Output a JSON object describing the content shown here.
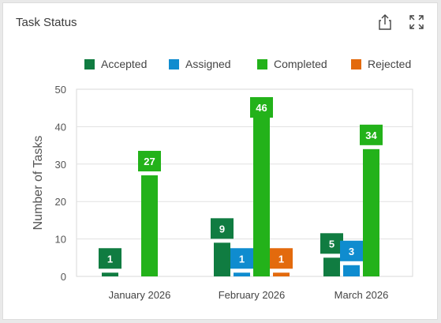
{
  "widget": {
    "title": "Task Status",
    "share_icon": "share-icon",
    "expand_icon": "expand-icon"
  },
  "colors": {
    "Accepted": "#107c41",
    "Assigned": "#0f8ccf",
    "Completed": "#23b21a",
    "Rejected": "#e36a0d"
  },
  "chart_data": {
    "type": "bar",
    "categories": [
      "January 2026",
      "February 2026",
      "March 2026"
    ],
    "series": [
      {
        "name": "Accepted",
        "values": [
          1,
          9,
          5
        ]
      },
      {
        "name": "Assigned",
        "values": [
          0,
          1,
          3
        ]
      },
      {
        "name": "Completed",
        "values": [
          27,
          46,
          34
        ]
      },
      {
        "name": "Rejected",
        "values": [
          0,
          1,
          0
        ]
      }
    ],
    "xlabel": "",
    "ylabel": "Number of Tasks",
    "ylim": [
      0,
      50
    ],
    "yticks": [
      0,
      10,
      20,
      30,
      40,
      50
    ],
    "grid": true,
    "legend": "top"
  }
}
